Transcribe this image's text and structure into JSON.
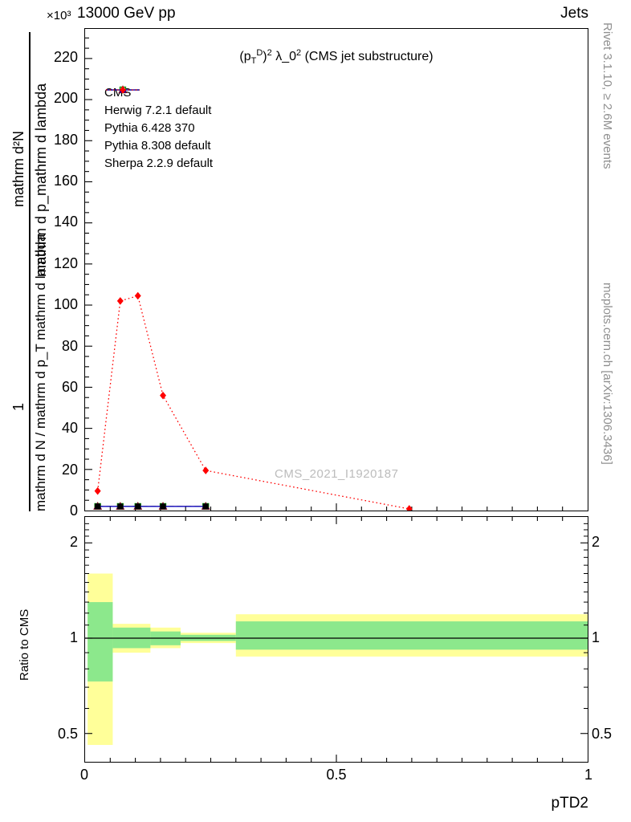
{
  "header": {
    "scale_label": "×10³",
    "title_left": "13000 GeV pp",
    "title_right": "Jets"
  },
  "plot": {
    "title_parts": [
      {
        "t": "(p"
      },
      {
        "sub": "T"
      },
      {
        "sup": "D"
      },
      {
        "t": ")"
      },
      {
        "sup": "2"
      },
      {
        "t": " λ_0"
      },
      {
        "sup": "2"
      },
      {
        "t": " (CMS jet substructure)"
      }
    ],
    "watermark": "CMS_2021_I1920187",
    "ylabel": {
      "numerator_top": "mathrm d²N",
      "numerator_bottom": "1",
      "denominator_top": "mathrm d p_mathrm d lambda",
      "denominator_bottom": "mathrm d N / mathrm d p_T mathrm d lambda"
    },
    "side_texts": {
      "top": "Rivet 3.1.10, ≥ 2.6M events",
      "bottom": "mcplots.cern.ch [arXiv:1306.3436]"
    },
    "legend": [
      {
        "label": "CMS",
        "marker": "square-filled",
        "color": "#000000",
        "line": "none"
      },
      {
        "label": "Herwig 7.2.1 default",
        "marker": "square-open",
        "color": "#009000",
        "line": "dashed"
      },
      {
        "label": "Pythia 6.428 370",
        "marker": "triangle-open",
        "color": "#900000",
        "line": "solid"
      },
      {
        "label": "Pythia 8.308 default",
        "marker": "triangle-filled",
        "color": "#0000cc",
        "line": "solid"
      },
      {
        "label": "Sherpa 2.2.9 default",
        "marker": "diamond-filled",
        "color": "#ff0000",
        "line": "dotted"
      }
    ]
  },
  "ratio": {
    "ylabel": "Ratio to CMS"
  },
  "axes": {
    "x_label": "pTD2",
    "x_ticks": [
      {
        "v": 0,
        "t": "0"
      },
      {
        "v": 0.5,
        "t": "0.5"
      },
      {
        "v": 1,
        "t": "1"
      }
    ],
    "main_y_ticks": [
      {
        "v": 0,
        "t": "0"
      },
      {
        "v": 20,
        "t": "20"
      },
      {
        "v": 40,
        "t": "40"
      },
      {
        "v": 60,
        "t": "60"
      },
      {
        "v": 80,
        "t": "80"
      },
      {
        "v": 100,
        "t": "100"
      },
      {
        "v": 120,
        "t": "120"
      },
      {
        "v": 140,
        "t": "140"
      },
      {
        "v": 160,
        "t": "160"
      },
      {
        "v": 180,
        "t": "180"
      },
      {
        "v": 200,
        "t": "200"
      },
      {
        "v": 220,
        "t": "220"
      }
    ],
    "ratio_y_ticks": [
      {
        "v": 2,
        "t": "2"
      },
      {
        "v": 1,
        "t": "1"
      },
      {
        "v": 0.5,
        "t": "0.5"
      }
    ]
  },
  "colors": {
    "band_yellow": "#ffff99",
    "band_green": "#8ce88c",
    "frame": "#000000",
    "watermark": "#bcbcbc",
    "side_text": "#8f8f8f"
  },
  "chart_data": [
    {
      "type": "line",
      "title": "(p_T^D)^2 λ_0^2 (CMS jet substructure)",
      "xlabel": "pTD2",
      "ylabel": "1/N d²N/(d p_T d lambda), values ×10³",
      "xlim": [
        0,
        1
      ],
      "ylim": [
        0,
        234
      ],
      "grid": false,
      "legend_position": "top-left",
      "series": [
        {
          "name": "Herwig 7.2.1 default",
          "marker": "square-open",
          "color": "#009000",
          "line": "dashed",
          "x": [
            0.025,
            0.07,
            0.105,
            0.155,
            0.24
          ],
          "y": [
            2,
            2,
            2,
            2,
            2
          ]
        },
        {
          "name": "Pythia 6.428 370",
          "marker": "triangle-open",
          "color": "#900000",
          "line": "solid",
          "x": [
            0.025,
            0.07,
            0.105,
            0.155,
            0.24
          ],
          "y": [
            2,
            2,
            2,
            2,
            2
          ]
        },
        {
          "name": "Pythia 8.308 default",
          "marker": "triangle-filled",
          "color": "#0000cc",
          "line": "solid",
          "x": [
            0.025,
            0.07,
            0.105,
            0.155,
            0.24
          ],
          "y": [
            2,
            2,
            2,
            2,
            2
          ]
        },
        {
          "name": "Sherpa 2.2.9 default",
          "marker": "diamond-filled",
          "color": "#ff0000",
          "line": "dotted",
          "x": [
            0.025,
            0.07,
            0.105,
            0.155,
            0.24,
            0.645
          ],
          "y": [
            9.5,
            102,
            104.5,
            56,
            19.5,
            0.8
          ]
        },
        {
          "name": "CMS",
          "marker": "square-filled",
          "color": "#000000",
          "line": "none",
          "x": [
            0.025,
            0.07,
            0.105,
            0.155,
            0.24
          ],
          "y": [
            2,
            2,
            2,
            2,
            2
          ]
        }
      ]
    },
    {
      "type": "ratio-band",
      "yscale": "log",
      "ylim": [
        0.41,
        2.41
      ],
      "reference_line": 1,
      "bands": [
        {
          "x0": 0.005,
          "x1": 0.055,
          "yellow": [
            0.46,
            1.6
          ],
          "green": [
            0.73,
            1.3
          ]
        },
        {
          "x0": 0.055,
          "x1": 0.13,
          "yellow": [
            0.9,
            1.11
          ],
          "green": [
            0.93,
            1.08
          ]
        },
        {
          "x0": 0.13,
          "x1": 0.19,
          "yellow": [
            0.93,
            1.08
          ],
          "green": [
            0.95,
            1.05
          ]
        },
        {
          "x0": 0.19,
          "x1": 0.3,
          "yellow": [
            0.965,
            1.04
          ],
          "green": [
            0.98,
            1.025
          ]
        },
        {
          "x0": 0.3,
          "x1": 1.0,
          "yellow": [
            0.875,
            1.19
          ],
          "green": [
            0.92,
            1.13
          ]
        }
      ]
    }
  ]
}
